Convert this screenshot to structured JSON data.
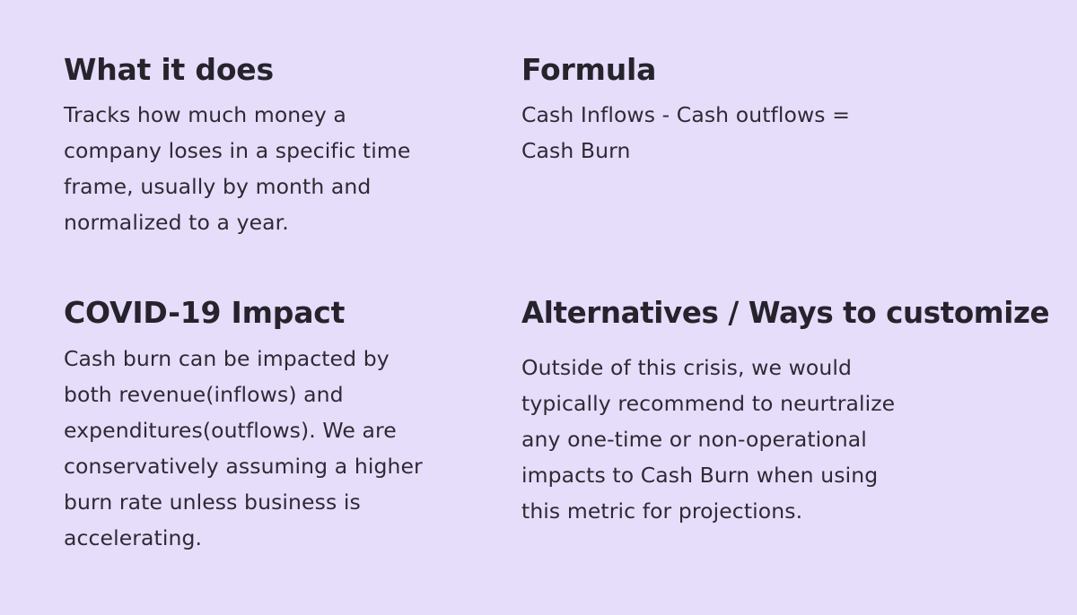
{
  "colors": {
    "background": "#e6ddfb",
    "heading_text": "#27232d",
    "body_text": "#2e2a34"
  },
  "sections": {
    "what_it_does": {
      "heading": "What it does",
      "body": "Tracks how much money a\ncompany loses in a specific time\nframe, usually by month and\nnormalized to a year."
    },
    "formula": {
      "heading": "Formula",
      "body": "Cash Inflows - Cash outflows =\nCash Burn"
    },
    "covid_impact": {
      "heading": "COVID-19 Impact",
      "body": "Cash burn can be impacted by\nboth revenue(inflows) and\nexpenditures(outflows). We are\nconservatively assuming a higher\nburn rate unless business is\naccelerating."
    },
    "alternatives": {
      "heading": "Alternatives / Ways to customize",
      "body": "Outside of this crisis, we would\ntypically recommend to neurtralize\nany one-time or non-operational\nimpacts to Cash Burn when using\nthis metric for projections."
    }
  }
}
